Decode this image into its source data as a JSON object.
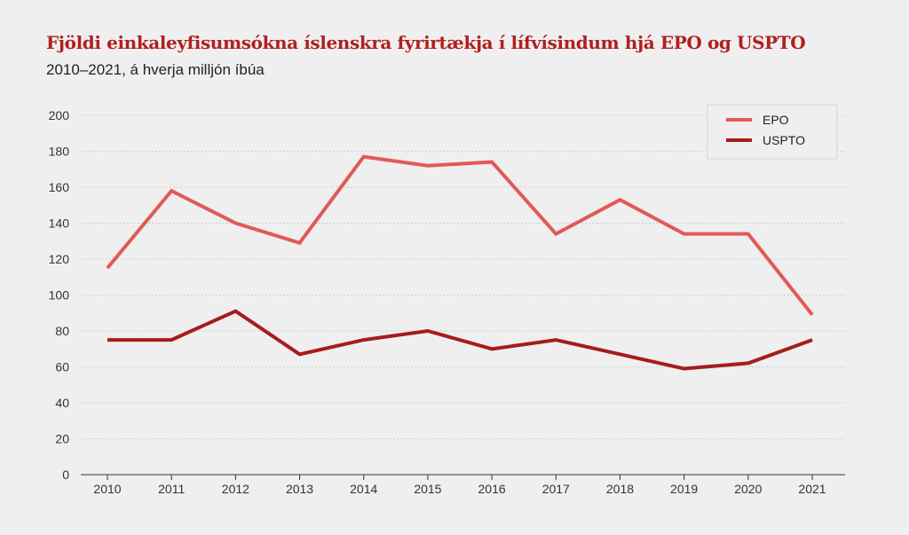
{
  "header": {
    "title": "Fjöldi einkaleyfisumsókna íslenskra fyrirtækja í lífvísindum hjá EPO og USPTO",
    "subtitle": "2010–2021, á hverja milljón íbúa"
  },
  "colors": {
    "background": "#efefef",
    "title": "#b0201e",
    "grid": "#cfcfcf",
    "axis": "#333333"
  },
  "chart_data": {
    "type": "line",
    "title": "Fjöldi einkaleyfisumsókna íslenskra fyrirtækja í lífvísindum hjá EPO og USPTO",
    "subtitle": "2010–2021, á hverja milljón íbúa",
    "xlabel": "",
    "ylabel": "",
    "x": [
      "2010",
      "2011",
      "2012",
      "2013",
      "2014",
      "2015",
      "2016",
      "2017",
      "2018",
      "2019",
      "2020",
      "2021"
    ],
    "ylim": [
      0,
      200
    ],
    "yticks": [
      0,
      20,
      40,
      60,
      80,
      100,
      120,
      140,
      160,
      180,
      200
    ],
    "grid": true,
    "legend_position": "top-right",
    "series": [
      {
        "name": "EPO",
        "color": "#e05a57",
        "values": [
          115,
          158,
          140,
          129,
          177,
          172,
          174,
          134,
          153,
          134,
          134,
          89
        ]
      },
      {
        "name": "USPTO",
        "color": "#a61c1c",
        "values": [
          75,
          75,
          91,
          67,
          75,
          80,
          70,
          75,
          67,
          59,
          62,
          75
        ]
      }
    ]
  }
}
